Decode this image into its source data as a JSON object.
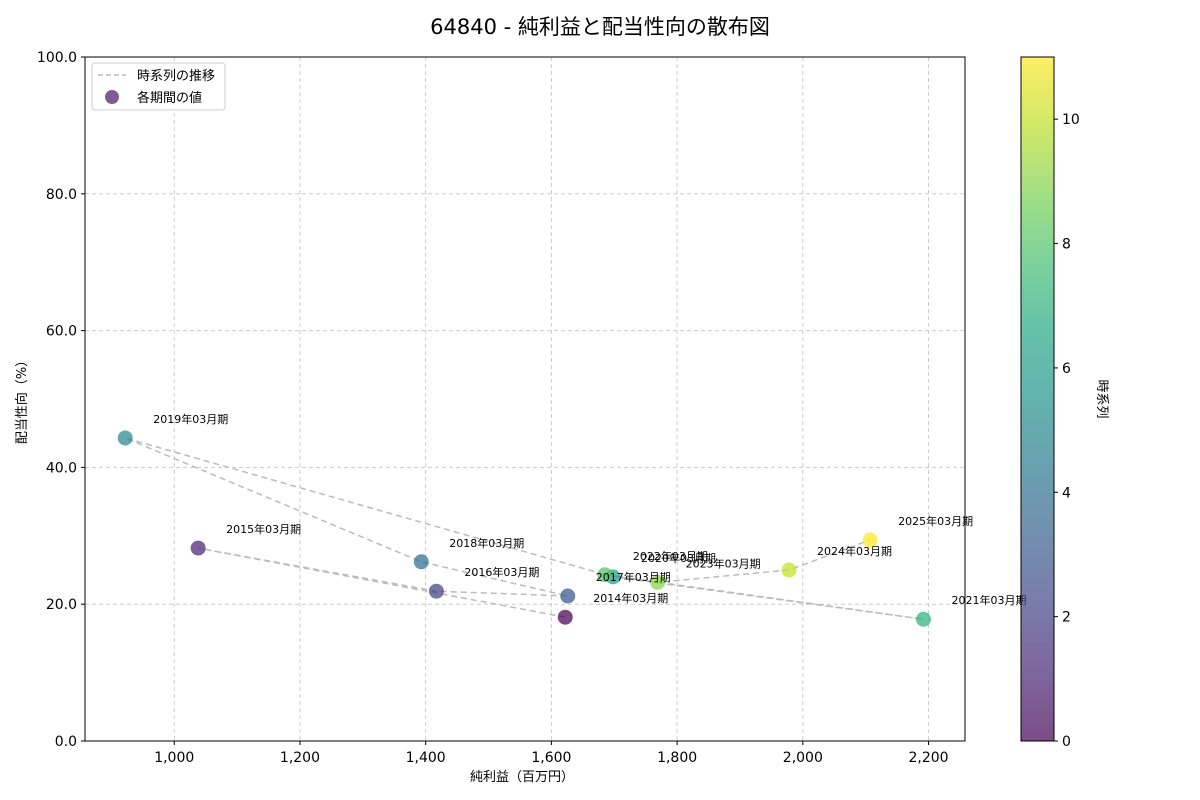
{
  "chart_data": {
    "type": "scatter",
    "title": "64840 - 純利益と配当性向の散布図",
    "xlabel": "純利益（百万円）",
    "ylabel": "配当性向（%）",
    "xlim": [
      858,
      2258
    ],
    "ylim": [
      0,
      100
    ],
    "x_ticks": [
      1000,
      1200,
      1400,
      1600,
      1800,
      2000,
      2200
    ],
    "x_tick_labels": [
      "1,000",
      "1,200",
      "1,400",
      "1,600",
      "1,800",
      "2,000",
      "2,200"
    ],
    "y_ticks": [
      0,
      20,
      40,
      60,
      80,
      100
    ],
    "y_tick_labels": [
      "0.0",
      "20.0",
      "40.0",
      "60.0",
      "80.0",
      "100.0"
    ],
    "grid": true,
    "legend": {
      "position": "upper left",
      "entries": [
        {
          "label": "時系列の推移",
          "style": "dashed-line",
          "color": "#bbbbbb"
        },
        {
          "label": "各期間の値",
          "style": "marker",
          "color": "#6a3d84"
        }
      ]
    },
    "colorbar": {
      "label": "時系列",
      "colormap": "viridis",
      "range": [
        0,
        11
      ],
      "ticks": [
        0,
        2,
        4,
        6,
        8,
        10
      ]
    },
    "series": [
      {
        "name": "各期間の値",
        "points": [
          {
            "label": "2014年03月期",
            "x": 1622,
            "y": 18.1,
            "t": 0
          },
          {
            "label": "2015年03月期",
            "x": 1038,
            "y": 28.2,
            "t": 1
          },
          {
            "label": "2016年03月期",
            "x": 1417,
            "y": 21.9,
            "t": 2
          },
          {
            "label": "2017年03月期",
            "x": 1626,
            "y": 21.2,
            "t": 3
          },
          {
            "label": "2018年03月期",
            "x": 1393,
            "y": 26.2,
            "t": 4
          },
          {
            "label": "2019年03月期",
            "x": 922,
            "y": 44.3,
            "t": 5
          },
          {
            "label": "2020年03月期",
            "x": 1698,
            "y": 24.0,
            "t": 6
          },
          {
            "label": "2021年03月期",
            "x": 2192,
            "y": 17.8,
            "t": 7
          },
          {
            "label": "2022年03月期",
            "x": 1685,
            "y": 24.3,
            "t": 8
          },
          {
            "label": "2023年03月期",
            "x": 1769,
            "y": 23.2,
            "t": 9
          },
          {
            "label": "2024年03月期",
            "x": 1978,
            "y": 25.0,
            "t": 10
          },
          {
            "label": "2025年03月期",
            "x": 2107,
            "y": 29.4,
            "t": 11
          }
        ]
      }
    ]
  },
  "colors": {
    "grid": "#cccccc",
    "trend_line": "#bbbbbb",
    "axis": "#000000"
  }
}
